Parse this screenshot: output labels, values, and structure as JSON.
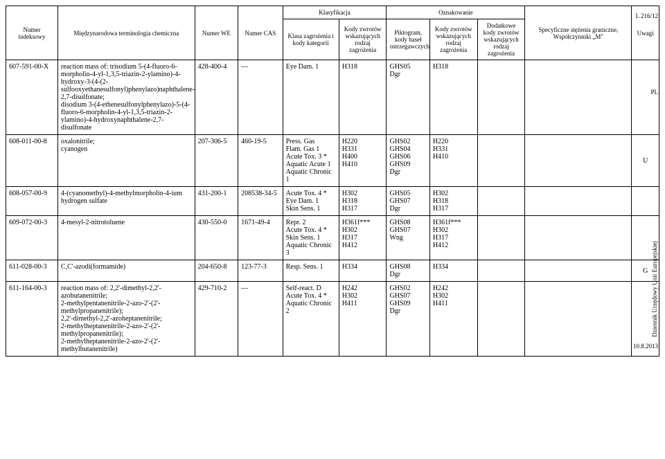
{
  "header": {
    "col1": "Numer indeksowy",
    "col2": "Międzynarodowa terminologia chemiczna",
    "col3": "Numer WE",
    "col4": "Numer CAS",
    "klas": "Klasyfikacja",
    "ozn": "Oznakowanie",
    "col5": "Klasa zagrożenia i kody kategorii",
    "col6": "Kody zwrotów wskazujących rodzaj zagrożenia",
    "col7": "Piktogram, kody haseł ostrzegawczych",
    "col8": "Kody zwrotów wskazujących rodzaj zagrożenia",
    "col9": "Dodatkowe kody zwrotów wskazujących rodzaj zagrożenia",
    "col10": "Specyficzne stężenia graniczne, Współczynniki „M\"",
    "col11": "Uwagi"
  },
  "side": {
    "pageref": "L 216/12",
    "pl": "PL",
    "journal": "Dziennik Urzędowy Unii Europejskiej",
    "date": "10.8.2013"
  },
  "rows": [
    {
      "idx": "607-591-00-X",
      "name": "reaction mass of: trisodium 5-(4-fluoro-6-morpholin-4-yl-1,3,5-triazin-2-ylamino)-4-hydroxy-3-(4-(2-sulfooxyethanesulfonyl)phenylazo)naphthalene-2,7-disulfonate;\ndisodium 3-(4-ethenesulfonylphenylazo)-5-(4-fluoro-6-morpholin-4-yl-1,3,5-triazin-2-ylamino)-4-hydroxynaphthalene-2,7-disulfonate",
      "we": "428-400-4",
      "cas": "—",
      "klasa": "Eye Dam. 1",
      "kody1": "H318",
      "pikt": "GHS05\nDgr",
      "kody2": "H318",
      "dod": "",
      "spec": "",
      "uwagi": ""
    },
    {
      "idx": "608-011-00-8",
      "name": "oxalonitrile;\ncyanogen",
      "we": "207-306-5",
      "cas": "460-19-5",
      "klasa": "Press. Gas\nFlam. Gas 1\nAcute Tox. 3 *\nAquatic Acute 1\nAquatic Chronic 1",
      "kody1": "H220\nH331\nH400\nH410",
      "pikt": "GHS02\nGHS04\nGHS06\nGHS09\nDgr",
      "kody2": "H220\nH331\nH410",
      "dod": "",
      "spec": "",
      "uwagi": "U"
    },
    {
      "idx": "608-057-00-9",
      "name": "4-(cyanomethyl)-4-methylmorpholin-4-ium hydrogen sulfate",
      "we": "431-200-1",
      "cas": "208538-34-5",
      "klasa": "Acute Tox. 4 *\nEye Dam. 1\nSkin Sens. 1",
      "kody1": "H302\nH318\nH317",
      "pikt": "GHS05\nGHS07\nDgr",
      "kody2": "H302\nH318\nH317",
      "dod": "",
      "spec": "",
      "uwagi": ""
    },
    {
      "idx": "609-072-00-3",
      "name": "4-mesyl-2-nitrotoluene",
      "we": "430-550-0",
      "cas": "1671-49-4",
      "klasa": "Repr. 2\nAcute Tox. 4 *\nSkin Sens. 1\nAquatic Chronic 3",
      "kody1": "H361f***\nH302\nH317\nH412",
      "pikt": "GHS08\nGHS07\nWng",
      "kody2": "H361f***\nH302\nH317\nH412",
      "dod": "",
      "spec": "",
      "uwagi": ""
    },
    {
      "idx": "611-028-00-3",
      "name": "C,C'-azodi(formamide)",
      "we": "204-650-8",
      "cas": "123-77-3",
      "klasa": "Resp. Sens. 1",
      "kody1": "H334",
      "pikt": "GHS08\nDgr",
      "kody2": "H334",
      "dod": "",
      "spec": "",
      "uwagi": "G"
    },
    {
      "idx": "611-164-00-3",
      "name": "reaction mass of: 2,2'-dimethyl-2,2'-azobutanenitrile;\n2-methylpentanenitrile-2-azo-2'-(2'-methylpropanenitrile);\n2,2'-dimethyl-2,2'-azoheptanenitrile;\n2-methylheptanenitrile-2-azo-2'-(2'-methylpropanenitrile);\n2-methylheptanenitrile-2-azo-2'-(2'-methylbutanenitrile)",
      "we": "429-710-2",
      "cas": "—",
      "klasa": "Self-react. D\nAcute Tox. 4 *\nAquatic Chronic 2",
      "kody1": "H242\nH302\nH411",
      "pikt": "GHS02\nGHS07\nGHS09\nDgr",
      "kody2": "H242\nH302\nH411",
      "dod": "",
      "spec": "",
      "uwagi": ""
    }
  ]
}
